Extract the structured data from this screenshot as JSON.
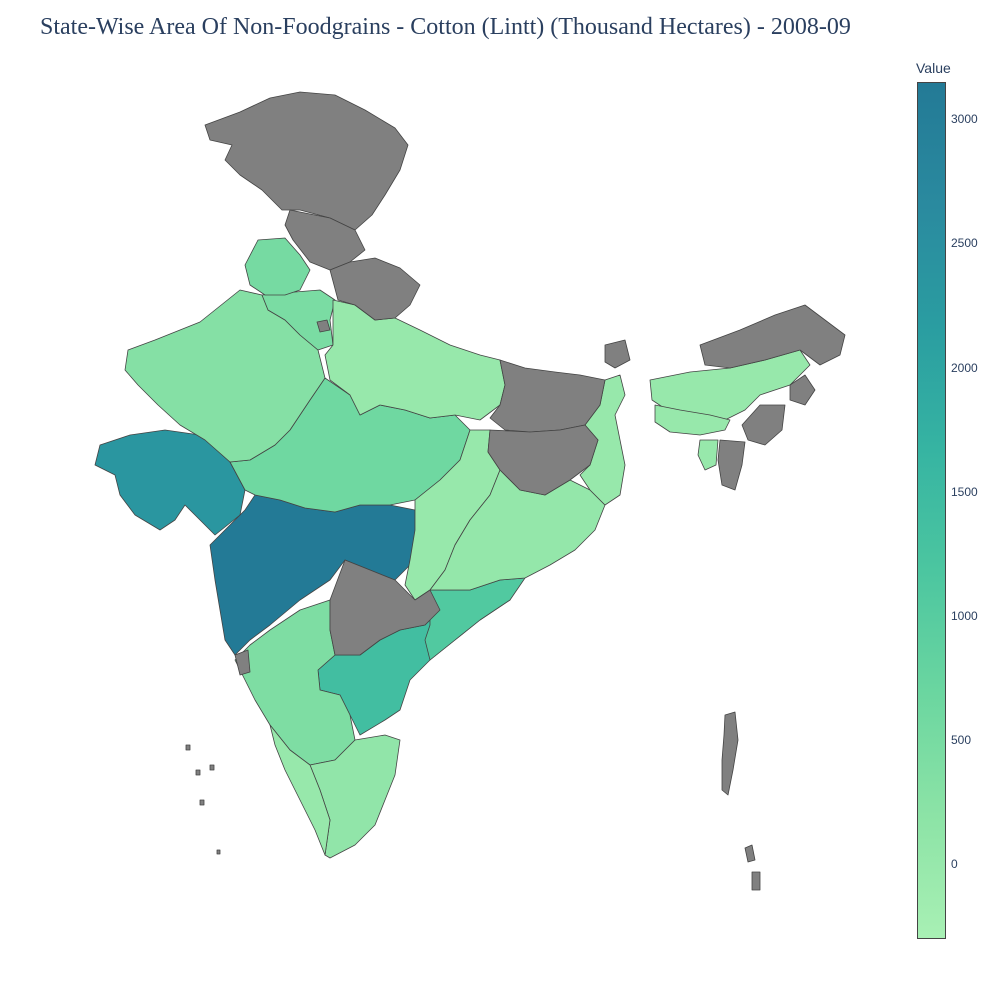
{
  "title": "State-Wise Area Of Non-Foodgrains - Cotton (Lintt) (Thousand Hectares) - 2008-09",
  "colorbar": {
    "title": "Value",
    "min": -300,
    "max": 3150,
    "ticks": [
      "0",
      "500",
      "1000",
      "1500",
      "2000",
      "2500",
      "3000"
    ],
    "colors": [
      "#a8f0b4",
      "#8ce3a6",
      "#6bd6a0",
      "#4cc6a0",
      "#36b4a2",
      "#2a9da1",
      "#2a8a9f",
      "#237a96"
    ]
  },
  "missing_color": "#808080",
  "chart_data": {
    "type": "choropleth",
    "title": "State-Wise Area Of Non-Foodgrains - Cotton (Lintt) (Thousand Hectares) - 2008-09",
    "value_label": "Value",
    "range": [
      -300,
      3150
    ],
    "states": [
      {
        "state": "Maharashtra",
        "value": 3146
      },
      {
        "state": "Gujarat",
        "value": 2354
      },
      {
        "state": "Andhra Pradesh",
        "value": 1399
      },
      {
        "state": "Odisha Coast",
        "value": 1100
      },
      {
        "state": "Madhya Pradesh",
        "value": 625
      },
      {
        "state": "Rajasthan",
        "value": 302
      },
      {
        "state": "Haryana",
        "value": 456
      },
      {
        "state": "Punjab",
        "value": 527
      },
      {
        "state": "Karnataka",
        "value": 405
      },
      {
        "state": "Tamil Nadu",
        "value": 100
      },
      {
        "state": "Uttar Pradesh",
        "value": 3
      },
      {
        "state": "Chhattisgarh",
        "value": 1
      },
      {
        "state": "Odisha",
        "value": 50
      },
      {
        "state": "West Bengal",
        "value": 0
      },
      {
        "state": "Assam",
        "value": 2
      },
      {
        "state": "Meghalaya",
        "value": 8
      },
      {
        "state": "Tripura",
        "value": 1
      },
      {
        "state": "Kerala",
        "value": 5
      },
      {
        "state": "Jammu and Kashmir",
        "value": null
      },
      {
        "state": "Himachal Pradesh",
        "value": null
      },
      {
        "state": "Uttarakhand",
        "value": null
      },
      {
        "state": "Bihar",
        "value": null
      },
      {
        "state": "Jharkhand",
        "value": null
      },
      {
        "state": "Telangana",
        "value": null
      },
      {
        "state": "Arunachal Pradesh",
        "value": null
      },
      {
        "state": "Nagaland",
        "value": null
      },
      {
        "state": "Manipur",
        "value": null
      },
      {
        "state": "Mizoram",
        "value": null
      },
      {
        "state": "Sikkim",
        "value": null
      },
      {
        "state": "Delhi",
        "value": null
      },
      {
        "state": "Goa",
        "value": null
      },
      {
        "state": "Andaman and Nicobar Islands",
        "value": null
      },
      {
        "state": "Lakshadweep",
        "value": null
      }
    ]
  }
}
